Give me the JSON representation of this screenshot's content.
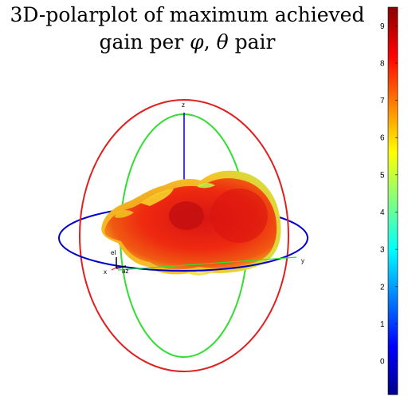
{
  "chart_data": {
    "type": "3d-polar-pattern",
    "title_line1": "3D-polarplot of maximum achieved",
    "title_line2_text": "gain per ",
    "title_phi": "φ",
    "title_sep": ", ",
    "title_theta": "θ",
    "title_suffix": " pair",
    "axes": {
      "x": "x",
      "y": "y",
      "z": "z",
      "el": "el",
      "az": "az"
    },
    "colorbar": {
      "ticks": [
        "0",
        "1",
        "2",
        "3",
        "4",
        "5",
        "6",
        "7",
        "8",
        "9"
      ],
      "range": [
        -0.9,
        9.5
      ],
      "colors": [
        "#00008b",
        "#0000ff",
        "#0080ff",
        "#00ffff",
        "#80ff80",
        "#ffff00",
        "#ff8000",
        "#ff0000",
        "#8b0000"
      ]
    },
    "reference_circles": {
      "azimuth": "#0000cc",
      "elevation_xz": "#e02020",
      "elevation_yz": "#33dd33"
    },
    "pattern_colors": {
      "peak": "#c20f0f",
      "high": "#e82a10",
      "mid": "#f26d12",
      "low": "#f6c428",
      "min": "#c8e84a"
    }
  }
}
